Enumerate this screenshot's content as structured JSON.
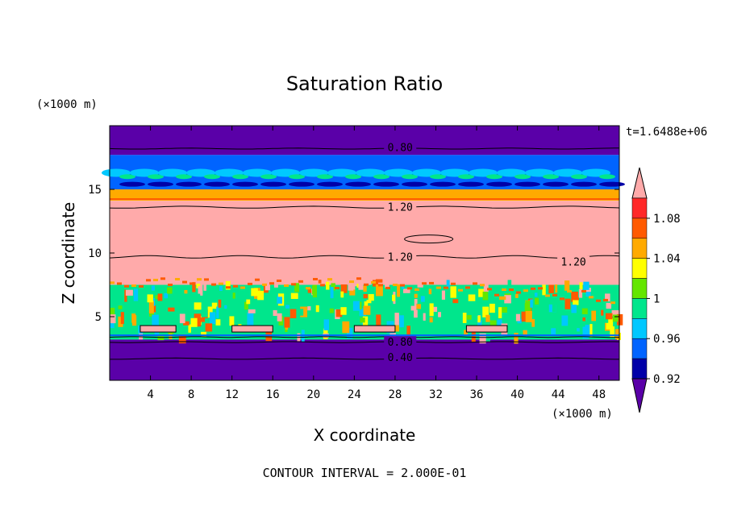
{
  "chart_data": {
    "type": "heatmap",
    "title": "Saturation Ratio",
    "xlabel": "X coordinate",
    "ylabel": "Z coordinate",
    "x_unit": "(×1000 m)",
    "y_unit": "(×1000 m)",
    "time_label": "t=1.6488e+06",
    "footer": "CONTOUR INTERVAL = 2.000E-01",
    "xlim": [
      0,
      50
    ],
    "ylim": [
      0,
      20
    ],
    "x_ticks": [
      4,
      8,
      12,
      16,
      20,
      24,
      28,
      32,
      36,
      40,
      44,
      48
    ],
    "y_ticks": [
      5,
      10,
      15
    ],
    "colorbar": {
      "levels": [
        0.92,
        0.96,
        1,
        1.04,
        1.08
      ],
      "level_labels": [
        "0.92",
        "0.96",
        "1",
        "1.04",
        "1.08"
      ],
      "colors": [
        "#5a00a8",
        "#0000a8",
        "#0064ff",
        "#00c8ff",
        "#00e68c",
        "#64e600",
        "#ffff00",
        "#ffaa00",
        "#ff5a00",
        "#ff2828",
        "#ffaaaa"
      ]
    },
    "bands": [
      {
        "z": [
          17.7,
          20
        ],
        "value": 0.8
      },
      {
        "z": [
          15.0,
          17.7
        ],
        "value": 0.95
      },
      {
        "z": [
          14.1,
          15.0
        ],
        "value": 1.05
      },
      {
        "z": [
          7.5,
          14.1
        ],
        "value": 1.2
      },
      {
        "z": [
          3.2,
          7.5
        ],
        "value": 1.0
      },
      {
        "z": [
          0,
          3.2
        ],
        "value": 0.6
      }
    ],
    "contour_labels": [
      {
        "text": "0.80",
        "x": 28.5,
        "z": 18.2
      },
      {
        "text": "1.20",
        "x": 28.5,
        "z": 13.5
      },
      {
        "text": "1.20",
        "x": 28.5,
        "z": 9.6
      },
      {
        "text": "1.20",
        "x": 45.5,
        "z": 9.2
      },
      {
        "text": "0.80",
        "x": 28.5,
        "z": 2.9
      },
      {
        "text": "0.40",
        "x": 28.5,
        "z": 1.7
      }
    ]
  }
}
